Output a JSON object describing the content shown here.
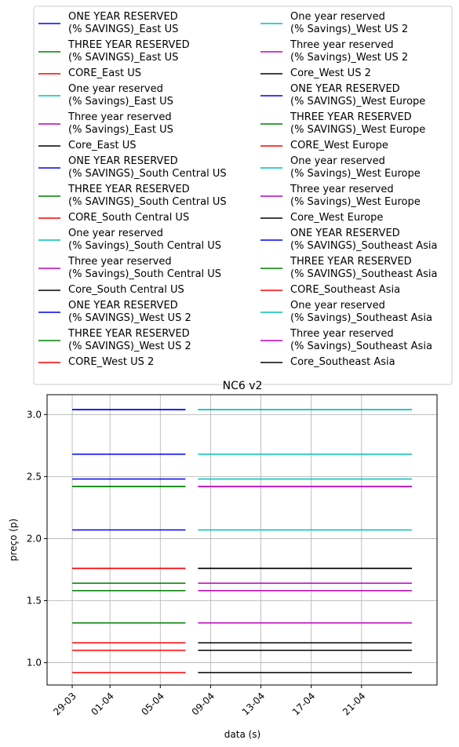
{
  "chart_data": {
    "type": "line",
    "title": "NC6 v2",
    "xlabel": "data (s)",
    "ylabel": "preço (p)",
    "x_range": [
      "2023-03-27",
      "2023-04-27"
    ],
    "ylim": [
      0.82,
      3.16
    ],
    "y_ticks": [
      1.0,
      1.5,
      2.0,
      2.5,
      3.0
    ],
    "y_tick_labels": [
      "1.0",
      "1.5",
      "2.0",
      "2.5",
      "3.0"
    ],
    "x_ticks": [
      "2023-03-29",
      "2023-04-01",
      "2023-04-05",
      "2023-04-09",
      "2023-04-13",
      "2023-04-17",
      "2023-04-21"
    ],
    "x_tick_labels": [
      "29-03",
      "01-04",
      "05-04",
      "09-04",
      "13-04",
      "17-04",
      "21-04"
    ],
    "grid": true,
    "legend_position": "top, above plot (2 columns)",
    "series": [
      {
        "name": "ONE YEAR RESERVED\n(% SAVINGS)_East US",
        "color": "#0000ff",
        "x": [
          "2023-03-29",
          "2023-04-07"
        ],
        "y": [
          2.48,
          2.48
        ]
      },
      {
        "name": "THREE YEAR RESERVED\n(% SAVINGS)_East US",
        "color": "#008000",
        "x": [
          "2023-03-29",
          "2023-04-07"
        ],
        "y": [
          1.58,
          1.58
        ]
      },
      {
        "name": "CORE_East US",
        "color": "#ff0000",
        "x": [
          "2023-03-29",
          "2023-04-07"
        ],
        "y": [
          1.1,
          1.1
        ]
      },
      {
        "name": "One year reserved\n(% Savings)_East US",
        "color": "#00bfbf",
        "x": [
          "2023-04-08",
          "2023-04-25"
        ],
        "y": [
          2.48,
          2.48
        ]
      },
      {
        "name": "Three year reserved\n(% Savings)_East US",
        "color": "#bf00bf",
        "x": [
          "2023-04-08",
          "2023-04-25"
        ],
        "y": [
          1.58,
          1.58
        ]
      },
      {
        "name": "Core_East US",
        "color": "#000000",
        "x": [
          "2023-04-08",
          "2023-04-25"
        ],
        "y": [
          1.1,
          1.1
        ]
      },
      {
        "name": "ONE YEAR RESERVED\n(% SAVINGS)_South Central US",
        "color": "#0000ff",
        "x": [
          "2023-03-29",
          "2023-04-07"
        ],
        "y": [
          2.68,
          2.68
        ]
      },
      {
        "name": "THREE YEAR RESERVED\n(% SAVINGS)_South Central US",
        "color": "#008000",
        "x": [
          "2023-03-29",
          "2023-04-07"
        ],
        "y": [
          1.64,
          1.64
        ]
      },
      {
        "name": "CORE_South Central US",
        "color": "#ff0000",
        "x": [
          "2023-03-29",
          "2023-04-07"
        ],
        "y": [
          1.16,
          1.16
        ]
      },
      {
        "name": "One year reserved\n(% Savings)_South Central US",
        "color": "#00bfbf",
        "x": [
          "2023-04-08",
          "2023-04-25"
        ],
        "y": [
          2.68,
          2.68
        ]
      },
      {
        "name": "Three year reserved\n(% Savings)_South Central US",
        "color": "#bf00bf",
        "x": [
          "2023-04-08",
          "2023-04-25"
        ],
        "y": [
          1.64,
          1.64
        ]
      },
      {
        "name": "Core_South Central US",
        "color": "#000000",
        "x": [
          "2023-04-08",
          "2023-04-25"
        ],
        "y": [
          1.16,
          1.16
        ]
      },
      {
        "name": "ONE YEAR RESERVED\n(% SAVINGS)_West US 2",
        "color": "#0000ff",
        "x": [
          "2023-03-29",
          "2023-04-07"
        ],
        "y": [
          2.07,
          2.07
        ]
      },
      {
        "name": "THREE YEAR RESERVED\n(% SAVINGS)_West US 2",
        "color": "#008000",
        "x": [
          "2023-03-29",
          "2023-04-07"
        ],
        "y": [
          1.32,
          1.32
        ]
      },
      {
        "name": "CORE_West US 2",
        "color": "#ff0000",
        "x": [
          "2023-03-29",
          "2023-04-07"
        ],
        "y": [
          0.92,
          0.92
        ]
      },
      {
        "name": "One year reserved\n(% Savings)_West US 2",
        "color": "#00bfbf",
        "x": [
          "2023-04-08",
          "2023-04-25"
        ],
        "y": [
          2.07,
          2.07
        ]
      },
      {
        "name": "Three year reserved\n(% Savings)_West US 2",
        "color": "#bf00bf",
        "x": [
          "2023-04-08",
          "2023-04-25"
        ],
        "y": [
          1.32,
          1.32
        ]
      },
      {
        "name": "Core_West US 2",
        "color": "#000000",
        "x": [
          "2023-04-08",
          "2023-04-25"
        ],
        "y": [
          0.92,
          0.92
        ]
      },
      {
        "name": "ONE YEAR RESERVED\n(% SAVINGS)_West Europe",
        "color": "#0000ff",
        "x": [
          "2023-03-29",
          "2023-04-07"
        ],
        "y": [
          3.04,
          3.04
        ]
      },
      {
        "name": "THREE YEAR RESERVED\n(% SAVINGS)_West Europe",
        "color": "#008000",
        "x": [
          "2023-03-29",
          "2023-04-07"
        ],
        "y": [
          2.42,
          2.42
        ]
      },
      {
        "name": "CORE_West Europe",
        "color": "#ff0000",
        "x": [
          "2023-03-29",
          "2023-04-07"
        ],
        "y": [
          1.76,
          1.76
        ]
      },
      {
        "name": "One year reserved\n(% Savings)_West Europe",
        "color": "#00bfbf",
        "x": [
          "2023-04-08",
          "2023-04-25"
        ],
        "y": [
          3.04,
          3.04
        ]
      },
      {
        "name": "Three year reserved\n(% Savings)_West Europe",
        "color": "#bf00bf",
        "x": [
          "2023-04-08",
          "2023-04-25"
        ],
        "y": [
          2.42,
          2.42
        ]
      },
      {
        "name": "Core_West Europe",
        "color": "#000000",
        "x": [
          "2023-04-08",
          "2023-04-25"
        ],
        "y": [
          1.76,
          1.76
        ]
      },
      {
        "name": "ONE YEAR RESERVED\n(% SAVINGS)_Southeast Asia",
        "color": "#0000ff",
        "x": [
          "2023-03-29",
          "2023-04-07"
        ],
        "y": [
          3.04,
          3.04
        ]
      },
      {
        "name": "THREE YEAR RESERVED\n(% SAVINGS)_Southeast Asia",
        "color": "#008000",
        "x": [
          "2023-03-29",
          "2023-04-07"
        ],
        "y": [
          2.42,
          2.42
        ]
      },
      {
        "name": "CORE_Southeast Asia",
        "color": "#ff0000",
        "x": [
          "2023-03-29",
          "2023-04-07"
        ],
        "y": [
          1.76,
          1.76
        ]
      },
      {
        "name": "One year reserved\n(% Savings)_Southeast Asia",
        "color": "#00bfbf",
        "x": [
          "2023-04-08",
          "2023-04-25"
        ],
        "y": [
          3.04,
          3.04
        ]
      },
      {
        "name": "Three year reserved\n(% Savings)_Southeast Asia",
        "color": "#bf00bf",
        "x": [
          "2023-04-08",
          "2023-04-25"
        ],
        "y": [
          2.42,
          2.42
        ]
      },
      {
        "name": "Core_Southeast Asia",
        "color": "#000000",
        "x": [
          "2023-04-08",
          "2023-04-25"
        ],
        "y": [
          1.76,
          1.76
        ]
      }
    ]
  }
}
